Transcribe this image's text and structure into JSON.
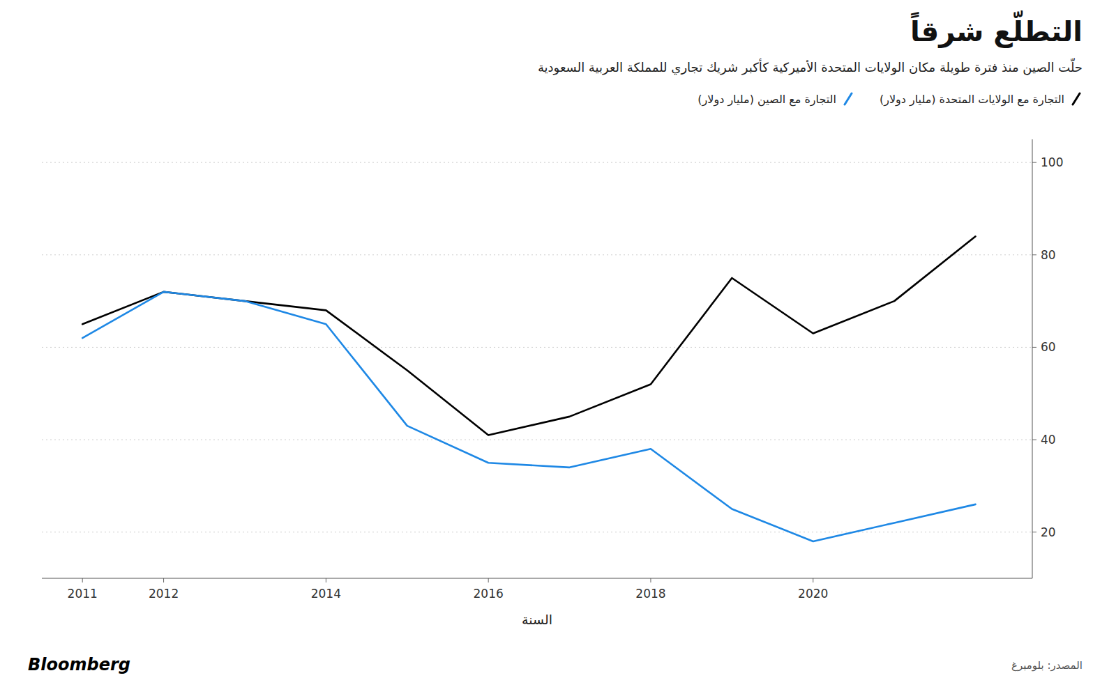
{
  "chart_data": {
    "type": "line",
    "title": "التطلّع شرقاً",
    "subtitle": "حلّت الصين منذ فترة طويلة مكان الولايات المتحدة الأميركية كأكبر شريك تجاري للمملكة العربية السعودية",
    "x_label": "السنة",
    "annotations": [
      "Bloomberg",
      "المصدر: بلومبرغ"
    ],
    "x": [
      2011,
      2012,
      2013,
      2014,
      2015,
      2016,
      2017,
      2018,
      2019,
      2020,
      2021,
      2022
    ],
    "series": [
      {
        "name": "التجارة مع الولايات المتحدة (مليار دولار)",
        "color": "#000000",
        "values": [
          65,
          72,
          70,
          68,
          55,
          41,
          45,
          52,
          75,
          63,
          70,
          84
        ]
      },
      {
        "name": "التجارة مع الصين (مليار دولار)",
        "color": "#1E88E5",
        "values": [
          62,
          72,
          70,
          65,
          43,
          35,
          34,
          38,
          25,
          18,
          22,
          26
        ]
      }
    ],
    "xlim": [
      2010.5,
      2022.7
    ],
    "xticks": [
      2011,
      2012,
      2014,
      2016,
      2018,
      2020
    ],
    "ylim": [
      10,
      105
    ],
    "yticks": [
      20,
      40,
      60,
      80,
      100
    ],
    "grid": true,
    "legend": "top-right"
  }
}
